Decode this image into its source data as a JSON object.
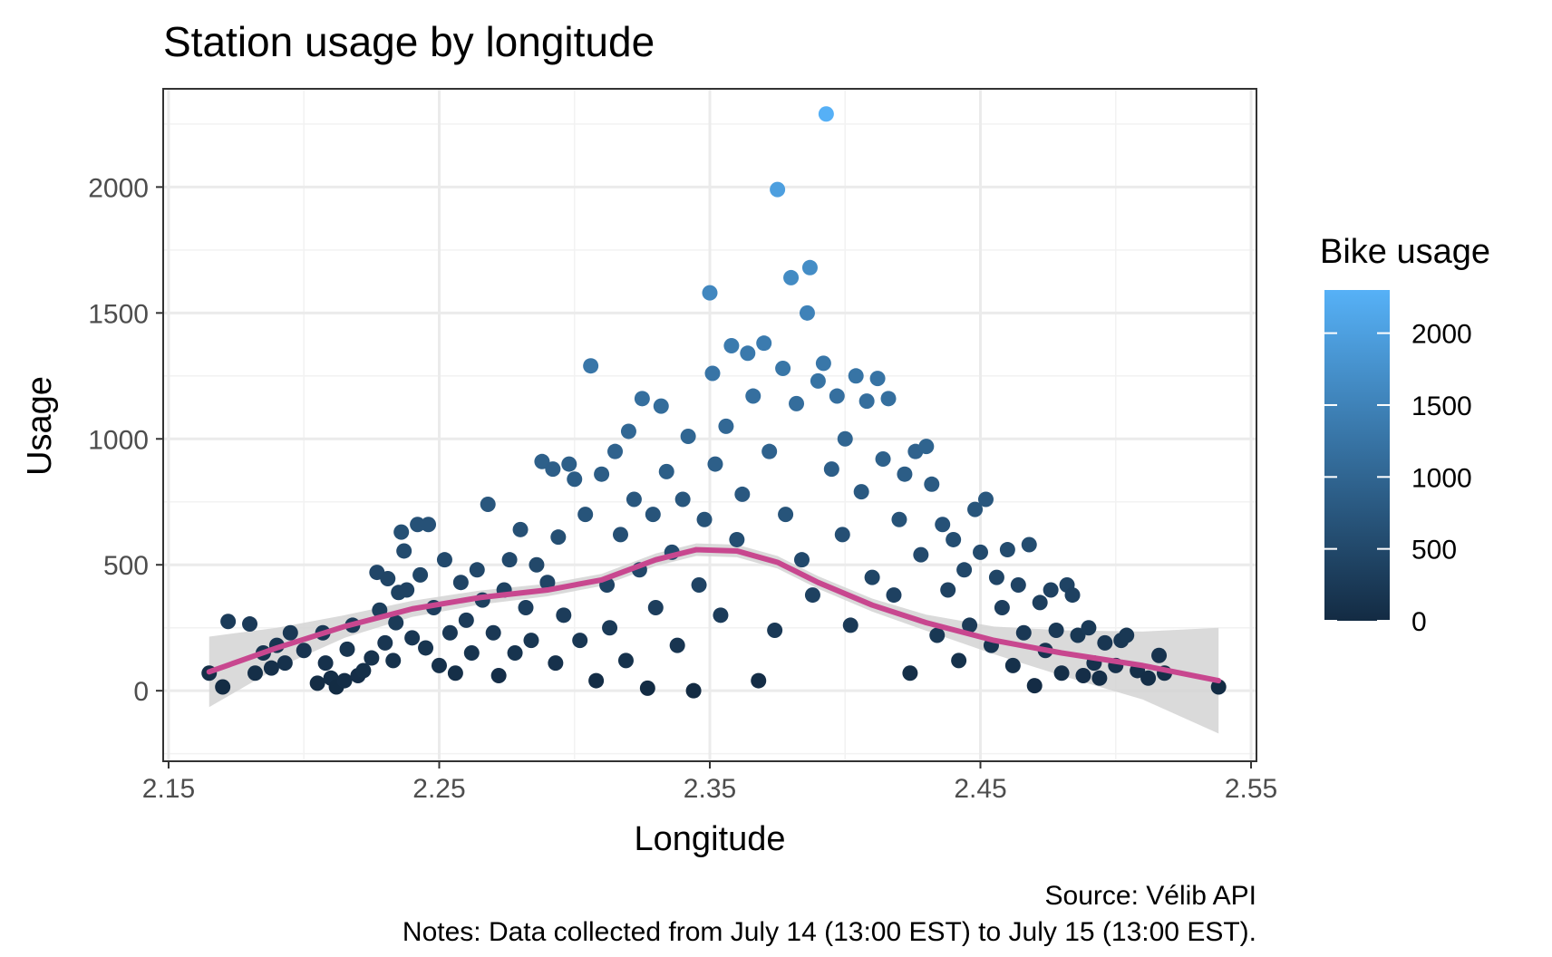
{
  "chart_data": {
    "type": "scatter",
    "title": "Station usage by longitude",
    "xlabel": "Longitude",
    "ylabel": "Usage",
    "xlim": [
      2.148,
      2.552
    ],
    "ylim": [
      -280,
      2390
    ],
    "x_ticks": [
      2.15,
      2.25,
      2.35,
      2.45,
      2.55
    ],
    "x_tick_labels": [
      "2.15",
      "2.25",
      "2.35",
      "2.45",
      "2.55"
    ],
    "y_ticks": [
      0,
      500,
      1000,
      1500,
      2000
    ],
    "y_tick_labels": [
      "0",
      "500",
      "1000",
      "1500",
      "2000"
    ],
    "grid": true,
    "legend": {
      "title": "Bike usage",
      "position": "right",
      "scale_min": 0,
      "scale_max": 2300,
      "ticks": [
        0,
        500,
        1000,
        1500,
        2000
      ],
      "tick_labels": [
        "0",
        "500",
        "1000",
        "1500",
        "2000"
      ],
      "color_low": "#132B43",
      "color_high": "#56B1F7"
    },
    "caption": [
      "Source: Vélib API",
      "Notes: Data collected from July 14 (13:00 EST) to July 15 (13:00 EST)."
    ],
    "points": [
      [
        2.165,
        70
      ],
      [
        2.17,
        15
      ],
      [
        2.172,
        275
      ],
      [
        2.18,
        265
      ],
      [
        2.182,
        70
      ],
      [
        2.185,
        150
      ],
      [
        2.188,
        90
      ],
      [
        2.19,
        180
      ],
      [
        2.193,
        110
      ],
      [
        2.195,
        230
      ],
      [
        2.2,
        160
      ],
      [
        2.205,
        30
      ],
      [
        2.207,
        230
      ],
      [
        2.208,
        110
      ],
      [
        2.21,
        50
      ],
      [
        2.212,
        15
      ],
      [
        2.215,
        40
      ],
      [
        2.216,
        165
      ],
      [
        2.218,
        260
      ],
      [
        2.22,
        60
      ],
      [
        2.222,
        80
      ],
      [
        2.225,
        130
      ],
      [
        2.227,
        470
      ],
      [
        2.228,
        320
      ],
      [
        2.23,
        190
      ],
      [
        2.231,
        445
      ],
      [
        2.233,
        120
      ],
      [
        2.234,
        270
      ],
      [
        2.235,
        390
      ],
      [
        2.236,
        630
      ],
      [
        2.237,
        555
      ],
      [
        2.238,
        400
      ],
      [
        2.24,
        210
      ],
      [
        2.242,
        660
      ],
      [
        2.243,
        460
      ],
      [
        2.245,
        170
      ],
      [
        2.246,
        660
      ],
      [
        2.248,
        330
      ],
      [
        2.25,
        100
      ],
      [
        2.252,
        520
      ],
      [
        2.254,
        230
      ],
      [
        2.256,
        70
      ],
      [
        2.258,
        430
      ],
      [
        2.26,
        280
      ],
      [
        2.262,
        150
      ],
      [
        2.264,
        480
      ],
      [
        2.266,
        360
      ],
      [
        2.268,
        740
      ],
      [
        2.27,
        230
      ],
      [
        2.272,
        60
      ],
      [
        2.274,
        400
      ],
      [
        2.276,
        520
      ],
      [
        2.278,
        150
      ],
      [
        2.28,
        640
      ],
      [
        2.282,
        330
      ],
      [
        2.284,
        200
      ],
      [
        2.286,
        500
      ],
      [
        2.288,
        910
      ],
      [
        2.29,
        430
      ],
      [
        2.292,
        880
      ],
      [
        2.293,
        110
      ],
      [
        2.294,
        610
      ],
      [
        2.296,
        300
      ],
      [
        2.298,
        900
      ],
      [
        2.3,
        840
      ],
      [
        2.302,
        200
      ],
      [
        2.304,
        700
      ],
      [
        2.306,
        1290
      ],
      [
        2.308,
        40
      ],
      [
        2.31,
        860
      ],
      [
        2.312,
        420
      ],
      [
        2.313,
        250
      ],
      [
        2.315,
        950
      ],
      [
        2.317,
        620
      ],
      [
        2.319,
        120
      ],
      [
        2.32,
        1030
      ],
      [
        2.322,
        760
      ],
      [
        2.324,
        480
      ],
      [
        2.325,
        1160
      ],
      [
        2.327,
        10
      ],
      [
        2.329,
        700
      ],
      [
        2.33,
        330
      ],
      [
        2.332,
        1130
      ],
      [
        2.334,
        870
      ],
      [
        2.336,
        550
      ],
      [
        2.338,
        180
      ],
      [
        2.34,
        760
      ],
      [
        2.342,
        1010
      ],
      [
        2.344,
        0
      ],
      [
        2.346,
        420
      ],
      [
        2.348,
        680
      ],
      [
        2.35,
        1580
      ],
      [
        2.351,
        1260
      ],
      [
        2.352,
        900
      ],
      [
        2.354,
        300
      ],
      [
        2.356,
        1050
      ],
      [
        2.358,
        1370
      ],
      [
        2.36,
        600
      ],
      [
        2.362,
        780
      ],
      [
        2.364,
        1340
      ],
      [
        2.366,
        1170
      ],
      [
        2.368,
        40
      ],
      [
        2.37,
        1380
      ],
      [
        2.372,
        950
      ],
      [
        2.374,
        240
      ],
      [
        2.375,
        1990
      ],
      [
        2.377,
        1280
      ],
      [
        2.378,
        700
      ],
      [
        2.38,
        1640
      ],
      [
        2.382,
        1140
      ],
      [
        2.384,
        520
      ],
      [
        2.386,
        1500
      ],
      [
        2.387,
        1680
      ],
      [
        2.388,
        380
      ],
      [
        2.39,
        1230
      ],
      [
        2.392,
        1300
      ],
      [
        2.393,
        2290
      ],
      [
        2.395,
        880
      ],
      [
        2.397,
        1170
      ],
      [
        2.399,
        620
      ],
      [
        2.4,
        1000
      ],
      [
        2.402,
        260
      ],
      [
        2.404,
        1250
      ],
      [
        2.406,
        790
      ],
      [
        2.408,
        1150
      ],
      [
        2.41,
        450
      ],
      [
        2.412,
        1240
      ],
      [
        2.414,
        920
      ],
      [
        2.416,
        1160
      ],
      [
        2.418,
        380
      ],
      [
        2.42,
        680
      ],
      [
        2.422,
        860
      ],
      [
        2.424,
        70
      ],
      [
        2.426,
        950
      ],
      [
        2.428,
        540
      ],
      [
        2.43,
        970
      ],
      [
        2.432,
        820
      ],
      [
        2.434,
        220
      ],
      [
        2.436,
        660
      ],
      [
        2.438,
        400
      ],
      [
        2.44,
        600
      ],
      [
        2.442,
        120
      ],
      [
        2.444,
        480
      ],
      [
        2.446,
        260
      ],
      [
        2.448,
        720
      ],
      [
        2.45,
        550
      ],
      [
        2.452,
        760
      ],
      [
        2.454,
        180
      ],
      [
        2.456,
        450
      ],
      [
        2.458,
        330
      ],
      [
        2.46,
        560
      ],
      [
        2.462,
        100
      ],
      [
        2.464,
        420
      ],
      [
        2.466,
        230
      ],
      [
        2.468,
        580
      ],
      [
        2.47,
        20
      ],
      [
        2.472,
        350
      ],
      [
        2.474,
        160
      ],
      [
        2.476,
        400
      ],
      [
        2.478,
        240
      ],
      [
        2.48,
        70
      ],
      [
        2.482,
        420
      ],
      [
        2.484,
        380
      ],
      [
        2.486,
        220
      ],
      [
        2.488,
        60
      ],
      [
        2.49,
        250
      ],
      [
        2.492,
        110
      ],
      [
        2.494,
        50
      ],
      [
        2.496,
        190
      ],
      [
        2.5,
        100
      ],
      [
        2.502,
        200
      ],
      [
        2.504,
        220
      ],
      [
        2.508,
        80
      ],
      [
        2.512,
        50
      ],
      [
        2.516,
        140
      ],
      [
        2.518,
        70
      ],
      [
        2.538,
        15
      ]
    ],
    "smooth": {
      "x": [
        2.165,
        2.19,
        2.215,
        2.24,
        2.265,
        2.29,
        2.31,
        2.33,
        2.345,
        2.36,
        2.375,
        2.39,
        2.41,
        2.43,
        2.455,
        2.48,
        2.51,
        2.538
      ],
      "y": [
        75,
        170,
        255,
        325,
        370,
        400,
        440,
        520,
        560,
        555,
        510,
        430,
        340,
        270,
        200,
        150,
        100,
        40
      ],
      "band_halfwidth": [
        140,
        80,
        45,
        32,
        28,
        25,
        24,
        25,
        25,
        25,
        25,
        25,
        26,
        32,
        55,
        90,
        135,
        210
      ],
      "line_color": "#C8478F",
      "band_color": "#D3D3D3"
    }
  }
}
